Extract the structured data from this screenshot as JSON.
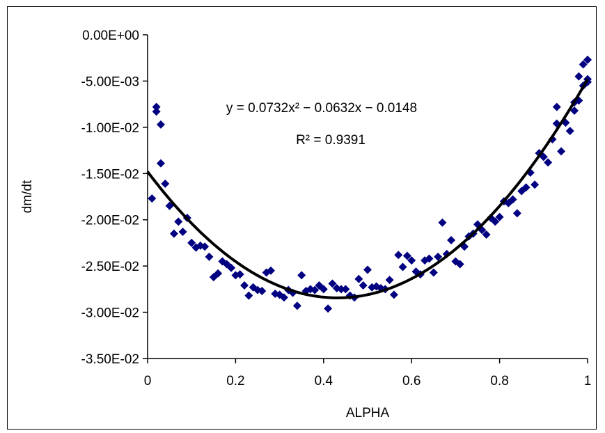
{
  "chart_data": {
    "type": "scatter",
    "xlabel": "ALPHA",
    "ylabel": "dm/dt",
    "xlim": [
      0,
      1
    ],
    "ylim": [
      -0.035,
      0
    ],
    "xticks": [
      0,
      0.2,
      0.4,
      0.6,
      0.8,
      1
    ],
    "xtick_labels": [
      "0",
      "0.2",
      "0.4",
      "0.6",
      "0.8",
      "1"
    ],
    "yticks": [
      0,
      -0.005,
      -0.01,
      -0.015,
      -0.02,
      -0.025,
      -0.03,
      -0.035
    ],
    "ytick_labels": [
      "0.00E+00",
      "-5.00E-03",
      "-1.00E-02",
      "-1.50E-02",
      "-2.00E-02",
      "-2.50E-02",
      "-3.00E-02",
      "-3.50E-02"
    ],
    "grid": false,
    "marker_color": "#000080",
    "trend_color": "#000000",
    "equation_text": "y = 0.0732x² − 0.0632x − 0.0148",
    "r2_text": "R² = 0.9391",
    "trendline": {
      "a": 0.0732,
      "b": -0.0632,
      "c": -0.0148
    },
    "points": [
      [
        0.01,
        -0.0177
      ],
      [
        0.02,
        -0.0078
      ],
      [
        0.02,
        -0.0083
      ],
      [
        0.03,
        -0.0097
      ],
      [
        0.03,
        -0.0139
      ],
      [
        0.04,
        -0.0161
      ],
      [
        0.05,
        -0.0185
      ],
      [
        0.06,
        -0.0215
      ],
      [
        0.07,
        -0.0202
      ],
      [
        0.08,
        -0.0213
      ],
      [
        0.09,
        -0.0198
      ],
      [
        0.1,
        -0.0225
      ],
      [
        0.11,
        -0.023
      ],
      [
        0.12,
        -0.0228
      ],
      [
        0.13,
        -0.0229
      ],
      [
        0.14,
        -0.024
      ],
      [
        0.15,
        -0.0262
      ],
      [
        0.16,
        -0.0258
      ],
      [
        0.17,
        -0.0245
      ],
      [
        0.18,
        -0.0248
      ],
      [
        0.19,
        -0.0252
      ],
      [
        0.2,
        -0.026
      ],
      [
        0.21,
        -0.0259
      ],
      [
        0.22,
        -0.0271
      ],
      [
        0.23,
        -0.0282
      ],
      [
        0.24,
        -0.0273
      ],
      [
        0.25,
        -0.0276
      ],
      [
        0.26,
        -0.0277
      ],
      [
        0.27,
        -0.0257
      ],
      [
        0.28,
        -0.0255
      ],
      [
        0.29,
        -0.028
      ],
      [
        0.3,
        -0.0281
      ],
      [
        0.31,
        -0.0284
      ],
      [
        0.32,
        -0.0276
      ],
      [
        0.33,
        -0.0279
      ],
      [
        0.34,
        -0.0293
      ],
      [
        0.35,
        -0.026
      ],
      [
        0.36,
        -0.0277
      ],
      [
        0.37,
        -0.0275
      ],
      [
        0.38,
        -0.0276
      ],
      [
        0.39,
        -0.0271
      ],
      [
        0.4,
        -0.0275
      ],
      [
        0.41,
        -0.0296
      ],
      [
        0.42,
        -0.0269
      ],
      [
        0.43,
        -0.0274
      ],
      [
        0.44,
        -0.0275
      ],
      [
        0.45,
        -0.0275
      ],
      [
        0.46,
        -0.0282
      ],
      [
        0.47,
        -0.0284
      ],
      [
        0.48,
        -0.0264
      ],
      [
        0.49,
        -0.0271
      ],
      [
        0.5,
        -0.0254
      ],
      [
        0.51,
        -0.0273
      ],
      [
        0.52,
        -0.0272
      ],
      [
        0.53,
        -0.0274
      ],
      [
        0.54,
        -0.0275
      ],
      [
        0.55,
        -0.0265
      ],
      [
        0.56,
        -0.0281
      ],
      [
        0.57,
        -0.0238
      ],
      [
        0.58,
        -0.0251
      ],
      [
        0.59,
        -0.0239
      ],
      [
        0.6,
        -0.0244
      ],
      [
        0.61,
        -0.0256
      ],
      [
        0.62,
        -0.0259
      ],
      [
        0.63,
        -0.0244
      ],
      [
        0.64,
        -0.0242
      ],
      [
        0.65,
        -0.0257
      ],
      [
        0.66,
        -0.024
      ],
      [
        0.67,
        -0.0203
      ],
      [
        0.68,
        -0.0237
      ],
      [
        0.69,
        -0.0222
      ],
      [
        0.7,
        -0.0245
      ],
      [
        0.71,
        -0.0248
      ],
      [
        0.72,
        -0.0229
      ],
      [
        0.73,
        -0.0218
      ],
      [
        0.74,
        -0.0215
      ],
      [
        0.75,
        -0.0205
      ],
      [
        0.76,
        -0.0211
      ],
      [
        0.77,
        -0.0216
      ],
      [
        0.78,
        -0.0198
      ],
      [
        0.79,
        -0.0202
      ],
      [
        0.8,
        -0.0197
      ],
      [
        0.81,
        -0.018
      ],
      [
        0.82,
        -0.0182
      ],
      [
        0.83,
        -0.0178
      ],
      [
        0.84,
        -0.0193
      ],
      [
        0.85,
        -0.0169
      ],
      [
        0.86,
        -0.0165
      ],
      [
        0.87,
        -0.0149
      ],
      [
        0.88,
        -0.0162
      ],
      [
        0.89,
        -0.0128
      ],
      [
        0.9,
        -0.0132
      ],
      [
        0.91,
        -0.0138
      ],
      [
        0.92,
        -0.0113
      ],
      [
        0.93,
        -0.0078
      ],
      [
        0.93,
        -0.0096
      ],
      [
        0.94,
        -0.0126
      ],
      [
        0.95,
        -0.0095
      ],
      [
        0.96,
        -0.0104
      ],
      [
        0.97,
        -0.0073
      ],
      [
        0.97,
        -0.0082
      ],
      [
        0.98,
        -0.0045
      ],
      [
        0.98,
        -0.0071
      ],
      [
        0.99,
        -0.0032
      ],
      [
        0.99,
        -0.0055
      ],
      [
        1.0,
        -0.0027
      ],
      [
        1.0,
        -0.0048
      ],
      [
        1.0,
        -0.0051
      ]
    ]
  }
}
